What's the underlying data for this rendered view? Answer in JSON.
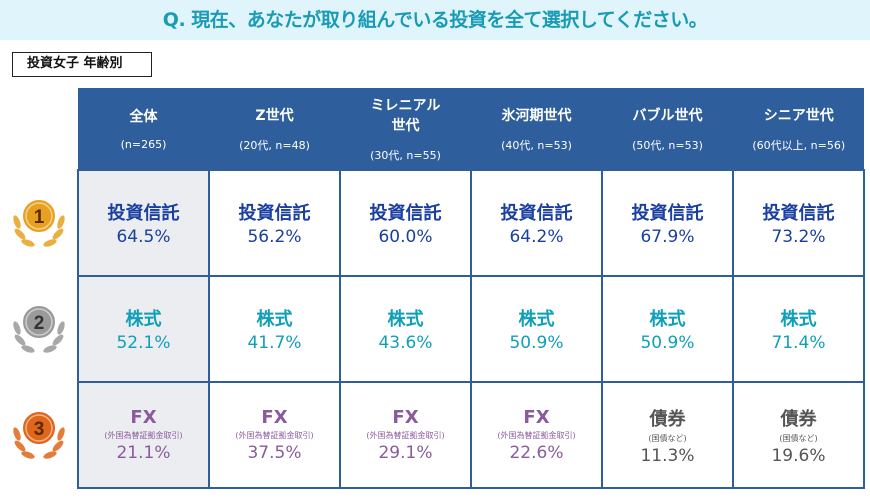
{
  "title": "Q. 現在、あなたが取り組んでいる投資を全て選択してください。",
  "segment_label": "投資女子 年齢別",
  "columns": [
    {
      "name": "全体",
      "sub": "(n=265)"
    },
    {
      "name": "Z世代",
      "sub": "(20代, n=48)"
    },
    {
      "name": "ミレニアル世代",
      "sub": "(30代, n=55)"
    },
    {
      "name": "氷河期世代",
      "sub": "(40代, n=53)"
    },
    {
      "name": "バブル世代",
      "sub": "(50代, n=53)"
    },
    {
      "name": "シニア世代",
      "sub": "(60代以上, n=56)"
    }
  ],
  "ranks": [
    {
      "rank": "1",
      "medal_color": "#e8a020",
      "cells": [
        {
          "item": "投資信託",
          "pct": "64.5%"
        },
        {
          "item": "投資信託",
          "pct": "56.2%"
        },
        {
          "item": "投資信託",
          "pct": "60.0%"
        },
        {
          "item": "投資信託",
          "pct": "64.2%"
        },
        {
          "item": "投資信託",
          "pct": "67.9%"
        },
        {
          "item": "投資信託",
          "pct": "73.2%"
        }
      ]
    },
    {
      "rank": "2",
      "medal_color": "#9a9a9a",
      "cells": [
        {
          "item": "株式",
          "pct": "52.1%"
        },
        {
          "item": "株式",
          "pct": "41.7%"
        },
        {
          "item": "株式",
          "pct": "43.6%"
        },
        {
          "item": "株式",
          "pct": "50.9%"
        },
        {
          "item": "株式",
          "pct": "50.9%"
        },
        {
          "item": "株式",
          "pct": "71.4%"
        }
      ]
    },
    {
      "rank": "3",
      "medal_color": "#e0661a",
      "cells": [
        {
          "item": "FX",
          "note": "(外国為替証拠金取引)",
          "pct": "21.1%"
        },
        {
          "item": "FX",
          "note": "(外国為替証拠金取引)",
          "pct": "37.5%"
        },
        {
          "item": "FX",
          "note": "(外国為替証拠金取引)",
          "pct": "29.1%"
        },
        {
          "item": "FX",
          "note": "(外国為替証拠金取引)",
          "pct": "22.6%"
        },
        {
          "item": "債券",
          "note": "(国債など)",
          "pct": "11.3%"
        },
        {
          "item": "債券",
          "note": "(国債など)",
          "pct": "19.6%"
        }
      ]
    }
  ],
  "colors": {
    "header": "#2e5e9c",
    "rank1_text": "#1a3fa0",
    "rank2_text": "#0fa0b8",
    "rank3_text": "#8b5a9e",
    "bond_text": "#555555"
  }
}
